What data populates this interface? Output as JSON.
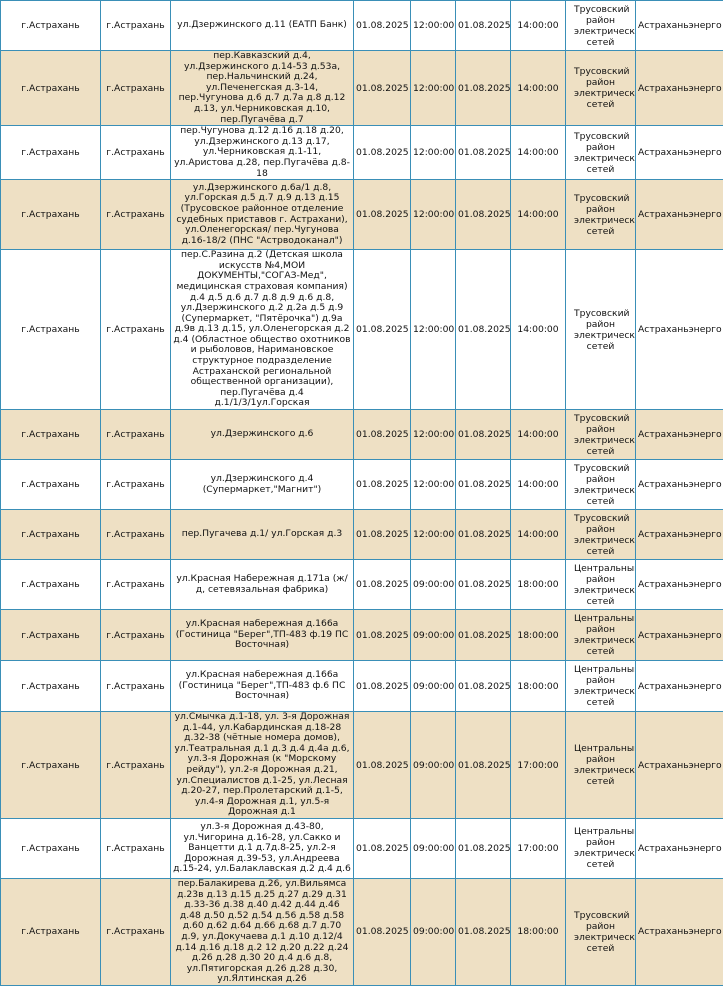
{
  "colors": {
    "border": "#3a8fb7",
    "row_alt": "#eee0c4",
    "row": "#ffffff"
  },
  "rows": [
    {
      "region": "г.Астрахань",
      "city": "г.Астрахань",
      "address": "ул.Дзержинского д.11 (ЕАТП Банк)",
      "start_date": "01.08.2025",
      "start_time": "12:00:00",
      "end_date": "01.08.2025",
      "end_time": "14:00:00",
      "district": "Трусовский район электрических сетей",
      "company": "Астраханьэнерго"
    },
    {
      "region": "г.Астрахань",
      "city": "г.Астрахань",
      "address": "пер.Кавказский д.4, ул.Дзержинского д.14-53 д.53а, пер.Нальчинский д.24, ул.Печенегская д.3-14, пер.Чугунова д.6 д.7 д.7а д.8 д.12 д.13, ул.Черниковская д.10, пер.Пугачёва д.7",
      "start_date": "01.08.2025",
      "start_time": "12:00:00",
      "end_date": "01.08.2025",
      "end_time": "14:00:00",
      "district": "Трусовский район электрических сетей",
      "company": "Астраханьэнерго"
    },
    {
      "region": "г.Астрахань",
      "city": "г.Астрахань",
      "address": "пер.Чугунова д.12 д.16 д.18 д.20, ул.Дзержинского д.13 д.17, ул.Черниковская д.1-11, ул.Аристова д.28, пер.Пугачёва д.8-18",
      "start_date": "01.08.2025",
      "start_time": "12:00:00",
      "end_date": "01.08.2025",
      "end_time": "14:00:00",
      "district": "Трусовский район электрических сетей",
      "company": "Астраханьэнерго"
    },
    {
      "region": "г.Астрахань",
      "city": "г.Астрахань",
      "address": "ул.Дзержинского д.6а/1 д.8, ул.Горская д.5 д.7 д.9 д.13 д.15 (Трусовское районное отделение судебных приставов г. Астрахани), ул.Оленегорская/ пер.Чугунова д.16-18/2 (ПНС \"Астрводоканал\")",
      "start_date": "01.08.2025",
      "start_time": "12:00:00",
      "end_date": "01.08.2025",
      "end_time": "14:00:00",
      "district": "Трусовский район электрических сетей",
      "company": "Астраханьэнерго"
    },
    {
      "region": "г.Астрахань",
      "city": "г.Астрахань",
      "address": "пер.С.Разина д.2 (Детская школа искусств №4,МОИ ДОКУМЕНТЫ,\"СОГАЗ-Мед\", медицинская страховая компания) д.4 д.5 д.6 д.7 д.8 д.9 д.6 д.8, ул.Дзержинского д.2 д.2а д.5 д.9 (Супермаркет, \"Пятёрочка\") д.9а д.9в д.13 д.15, ул.Оленегорская д.2 д.4 (Областное общество охотников и рыболовов, Наримановское структурное подразделение Астраханской региональной общественной организации), пер.Пугачёва д.4 д.1/1/3/1ул.Горская",
      "start_date": "01.08.2025",
      "start_time": "12:00:00",
      "end_date": "01.08.2025",
      "end_time": "14:00:00",
      "district": "Трусовский район электрических сетей",
      "company": "Астраханьэнерго"
    },
    {
      "region": "г.Астрахань",
      "city": "г.Астрахань",
      "address": "ул.Дзержинского д.6",
      "start_date": "01.08.2025",
      "start_time": "12:00:00",
      "end_date": "01.08.2025",
      "end_time": "14:00:00",
      "district": "Трусовский район электрических сетей",
      "company": "Астраханьэнерго"
    },
    {
      "region": "г.Астрахань",
      "city": "г.Астрахань",
      "address": "ул.Дзержинского д.4 (Супермаркет,\"Магнит\")",
      "start_date": "01.08.2025",
      "start_time": "12:00:00",
      "end_date": "01.08.2025",
      "end_time": "14:00:00",
      "district": "Трусовский район электрических сетей",
      "company": "Астраханьэнерго"
    },
    {
      "region": "г.Астрахань",
      "city": "г.Астрахань",
      "address": "пер.Пугачева д.1/ ул.Горская д.3",
      "start_date": "01.08.2025",
      "start_time": "12:00:00",
      "end_date": "01.08.2025",
      "end_time": "14:00:00",
      "district": "Трусовский район электрических сетей",
      "company": "Астраханьэнерго"
    },
    {
      "region": "г.Астрахань",
      "city": "г.Астрахань",
      "address": "ул.Красная Набережная д.171а (ж/д, сетевязальная фабрика)",
      "start_date": "01.08.2025",
      "start_time": "09:00:00",
      "end_date": "01.08.2025",
      "end_time": "18:00:00",
      "district": "Центральный район электрических сетей",
      "company": "Астраханьэнерго"
    },
    {
      "region": "г.Астрахань",
      "city": "г.Астрахань",
      "address": "ул.Красная набережная д.166а (Гостиница \"Берег\",ТП-483 ф.19 ПС Восточная)",
      "start_date": "01.08.2025",
      "start_time": "09:00:00",
      "end_date": "01.08.2025",
      "end_time": "18:00:00",
      "district": "Центральный район электрических сетей",
      "company": "Астраханьэнерго"
    },
    {
      "region": "г.Астрахань",
      "city": "г.Астрахань",
      "address": "ул.Красная набережная д.166а (Гостиница \"Берег\",ТП-483 ф.6 ПС Восточная)",
      "start_date": "01.08.2025",
      "start_time": "09:00:00",
      "end_date": "01.08.2025",
      "end_time": "18:00:00",
      "district": "Центральный район электрических сетей",
      "company": "Астраханьэнерго"
    },
    {
      "region": "г.Астрахань",
      "city": "г.Астрахань",
      "address": "ул.Смычка д.1-18, ул. 3-я Дорожная д.1-44, ул.Кабардинская д.18-28 д.32-38 (чётные номера домов), ул.Театральная д.1 д.3 д.4 д.4а д.6, ул.3-я Дорожная (к \"Морскому рейду\"), ул.2-я Дорожная д.21, ул.Специалистов д.1-25, ул.Лесная д.20-27, пер.Пролетарский д.1-5, ул.4-я Дорожная д.1, ул.5-я Дорожная д.1",
      "start_date": "01.08.2025",
      "start_time": "09:00:00",
      "end_date": "01.08.2025",
      "end_time": "17:00:00",
      "district": "Центральный район электрических сетей",
      "company": "Астраханьэнерго"
    },
    {
      "region": "г.Астрахань",
      "city": "г.Астрахань",
      "address": "ул.3-я Дорожная д.43-80, ул.Чигорина д.16-28, ул.Сакко и Ванцетти д.1 д.7д.8-25, ул.2-я Дорожная д.39-53, ул.Андреева д.15-24, ул.Балаклавская д.2 д.4 д.6",
      "start_date": "01.08.2025",
      "start_time": "09:00:00",
      "end_date": "01.08.2025",
      "end_time": "17:00:00",
      "district": "Центральный район электрических сетей",
      "company": "Астраханьэнерго"
    },
    {
      "region": "г.Астрахань",
      "city": "г.Астрахань",
      "address": "пер.Балакирева д.26, ул.Вильямса д.23в д.13 д.15 д.25 д.27 д.29 д.31 д.33-36 д.38 д.40 д.42 д.44 д.46 д.48 д.50 д.52 д.54 д.56 д.58 д.58 д.60 д.62 д.64 д.66 д.68 д.7 д.70 д.9, ул.Докучаева д.1 д.10 д.12/4 д.14 д.16 д.18 д.2 12 д.20 д.22 д.24 д.26 д.28 д.30 20 д.4 д.6 д.8, ул.Пятигорская д.26 д.28 д.30, ул.Ялтинская д.26",
      "start_date": "01.08.2025",
      "start_time": "09:00:00",
      "end_date": "01.08.2025",
      "end_time": "18:00:00",
      "district": "Трусовский район электрических сетей",
      "company": "Астраханьэнерго"
    }
  ]
}
